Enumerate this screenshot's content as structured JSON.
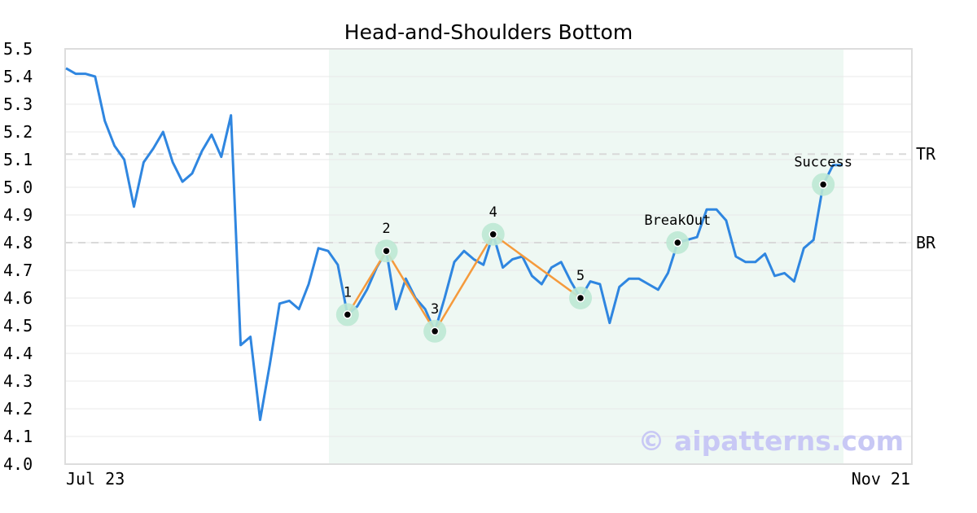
{
  "chart_data": {
    "type": "line",
    "title": "Head-and-Shoulders Bottom",
    "xlabel": "",
    "ylabel": "",
    "x_tick_labels": [
      "Jul 23",
      "Nov 21"
    ],
    "ylim": [
      4.0,
      5.5
    ],
    "y_ticks": [
      "4.0",
      "4.1",
      "4.2",
      "4.3",
      "4.4",
      "4.5",
      "4.6",
      "4.7",
      "4.8",
      "4.9",
      "5.0",
      "5.1",
      "5.2",
      "5.3",
      "5.4",
      "5.5"
    ],
    "grid": true,
    "colors": {
      "price": "#2f86e0",
      "pattern": "#f59a3c",
      "marker_halo": "#bde8d4",
      "highlight": "#eef8f3",
      "reference": "#d9d9d9",
      "frame": "#dddddd"
    },
    "series": [
      {
        "values": [
          5.43,
          5.41,
          5.41,
          5.4,
          5.24,
          5.15,
          5.1,
          4.93,
          5.09,
          5.14,
          5.2,
          5.09,
          5.02,
          5.05,
          5.13,
          5.19,
          5.11,
          5.26,
          4.43,
          4.46,
          4.16,
          4.36,
          4.58,
          4.59,
          4.56,
          4.65,
          4.78,
          4.77,
          4.72,
          4.54,
          4.57,
          4.63,
          4.71,
          4.77,
          4.56,
          4.67,
          4.6,
          4.56,
          4.48,
          4.6,
          4.73,
          4.77,
          4.74,
          4.72,
          4.83,
          4.71,
          4.74,
          4.75,
          4.68,
          4.65,
          4.71,
          4.73,
          4.66,
          4.6,
          4.66,
          4.65,
          4.51,
          4.64,
          4.67,
          4.67,
          4.65,
          4.63,
          4.69,
          4.8,
          4.81,
          4.82,
          4.92,
          4.92,
          4.88,
          4.75,
          4.73,
          4.73,
          4.76,
          4.68,
          4.69,
          4.66,
          4.78,
          4.81,
          5.01,
          5.08,
          5.08
        ]
      }
    ],
    "highlight_range": [
      27,
      80
    ],
    "pattern_points": [
      {
        "label": "1",
        "index": 29,
        "value": 4.54
      },
      {
        "label": "2",
        "index": 33,
        "value": 4.77
      },
      {
        "label": "3",
        "index": 38,
        "value": 4.48
      },
      {
        "label": "4",
        "index": 44,
        "value": 4.83
      },
      {
        "label": "5",
        "index": 53,
        "value": 4.6
      }
    ],
    "event_points": [
      {
        "label": "BreakOut",
        "index": 63,
        "value": 4.8
      },
      {
        "label": "Success",
        "index": 78,
        "value": 5.01
      }
    ],
    "reference_lines": [
      {
        "label": "TR",
        "value": 5.12
      },
      {
        "label": "BR",
        "value": 4.8
      }
    ],
    "watermark": "© aipatterns.com"
  }
}
